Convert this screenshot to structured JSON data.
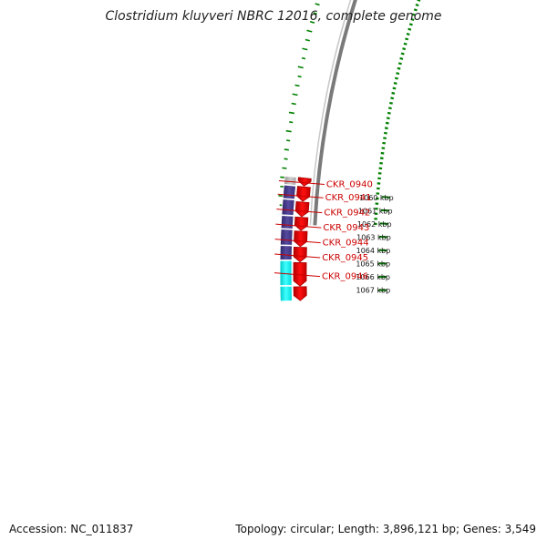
{
  "title": "Clostridium kluyveri NBRC 12016, complete genome",
  "accession": "Accession: NC_011837",
  "topology": "Topology: circular; Length: 3,896,121 bp; Genes: 3,549",
  "colors": {
    "backbone": "#808080",
    "forward_gene": "#ff0000",
    "reverse_gene": "#483d8b",
    "reverse_gene_alt": "#00ffff",
    "reverse_gene_grey": "#aaaaaa",
    "gc_skew": "#008000",
    "label": "#cc0000"
  },
  "ticks": [
    {
      "label": "1060 kbp",
      "kbp": 1060
    },
    {
      "label": "1061 kbp",
      "kbp": 1061
    },
    {
      "label": "1062 kbp",
      "kbp": 1062
    },
    {
      "label": "1063 kbp",
      "kbp": 1063
    },
    {
      "label": "1064 kbp",
      "kbp": 1064
    },
    {
      "label": "1065 kbp",
      "kbp": 1065
    },
    {
      "label": "1066 kbp",
      "kbp": 1066
    },
    {
      "label": "1067 kbp",
      "kbp": 1067
    }
  ],
  "genes": [
    {
      "id": "CKR_0940",
      "label": "CKR_0940"
    },
    {
      "id": "CKR_0941",
      "label": "CKR_0941"
    },
    {
      "id": "CKR_0942",
      "label": "CKR_0942"
    },
    {
      "id": "CKR_0943",
      "label": "CKR_0943"
    },
    {
      "id": "CKR_0944",
      "label": "CKR_0944"
    },
    {
      "id": "CKR_0945",
      "label": "CKR_0945"
    },
    {
      "id": "CKR_0946",
      "label": "CKR_0946"
    }
  ]
}
